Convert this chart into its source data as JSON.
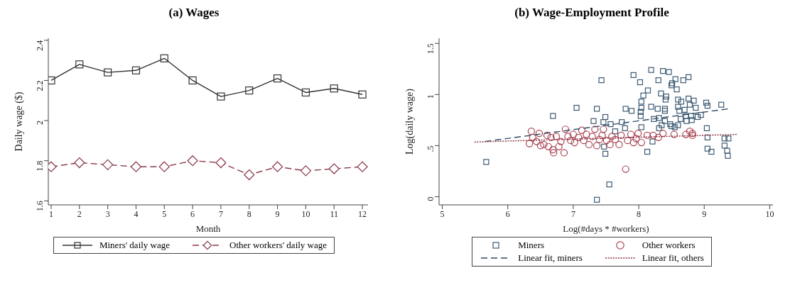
{
  "chart_data": [
    {
      "type": "line",
      "title": "(a) Wages",
      "xlabel": "Month",
      "ylabel": "Daily wage ($)",
      "x": [
        1,
        2,
        3,
        4,
        5,
        6,
        7,
        8,
        9,
        10,
        11,
        12
      ],
      "xlim": [
        0.9,
        12.2
      ],
      "xticks": [
        1,
        2,
        3,
        4,
        5,
        6,
        7,
        8,
        9,
        10,
        11,
        12
      ],
      "ylim": [
        1.58,
        2.41
      ],
      "yticks": [
        1.6,
        1.8,
        2,
        2.2,
        2.4
      ],
      "grid": false,
      "legend": "bottom",
      "series": [
        {
          "name": "Miners' daily wage",
          "color": "#333333",
          "marker": "square",
          "line_style": "solid",
          "values": [
            2.2,
            2.28,
            2.24,
            2.25,
            2.31,
            2.2,
            2.12,
            2.15,
            2.21,
            2.14,
            2.16,
            2.13
          ]
        },
        {
          "name": "Other workers' daily wage",
          "color": "#8b3a4a",
          "marker": "diamond",
          "line_style": "dashed",
          "values": [
            1.77,
            1.79,
            1.78,
            1.77,
            1.77,
            1.8,
            1.79,
            1.73,
            1.77,
            1.75,
            1.76,
            1.77
          ]
        }
      ]
    },
    {
      "type": "scatter",
      "title": "(b) Wage-Employment Profile",
      "xlabel": "Log(#days * #workers)",
      "ylabel": "Log(daily wage)",
      "xlim": [
        4.95,
        10.05
      ],
      "xticks": [
        5,
        6,
        7,
        8,
        9,
        10
      ],
      "ylim": [
        -0.08,
        1.55
      ],
      "yticks": [
        0,
        {
          "value": 0.5,
          "label": ".5"
        },
        1,
        1.5
      ],
      "grid": false,
      "legend": "bottom",
      "series": [
        {
          "name": "Miners",
          "color": "#3d5a73",
          "marker": "square",
          "x": [
            5.67,
            6.69,
            7.05,
            7.36,
            7.43,
            7.31,
            7.49,
            7.46,
            7.57,
            7.47,
            7.49,
            7.55,
            7.36,
            7.64,
            7.74,
            7.79,
            7.8,
            7.89,
            7.92,
            8.02,
            8.04,
            8.04,
            8.03,
            8.03,
            8.04,
            8.07,
            8.14,
            8.19,
            8.19,
            8.23,
            8.21,
            8.13,
            8.3,
            8.29,
            8.34,
            8.37,
            8.46,
            8.4,
            8.4,
            8.41,
            8.42,
            8.31,
            8.4,
            8.35,
            8.31,
            8.48,
            8.5,
            8.55,
            8.5,
            8.51,
            8.56,
            8.58,
            8.6,
            8.65,
            8.6,
            8.62,
            8.64,
            8.6,
            8.68,
            8.76,
            8.76,
            8.84,
            8.78,
            8.7,
            8.87,
            8.72,
            8.8,
            8.73,
            8.81,
            8.9,
            8.95,
            9.03,
            9.05,
            9.26,
            9.04,
            9.05,
            9.05,
            9.11,
            9.31,
            9.37,
            9.31,
            9.35,
            9.36
          ],
          "values": [
            0.34,
            0.79,
            0.87,
            0.86,
            1.14,
            0.74,
            0.78,
            0.73,
            0.71,
            0.49,
            0.42,
            0.12,
            -0.03,
            0.64,
            0.73,
            0.67,
            0.86,
            0.84,
            1.19,
            1.12,
            0.93,
            0.87,
            0.83,
            0.79,
            0.68,
            0.99,
            1.04,
            1.24,
            0.88,
            0.76,
            0.54,
            0.44,
            1.14,
            0.86,
            1.01,
            1.23,
            1.22,
            0.86,
            0.84,
            0.95,
            0.98,
            0.77,
            0.74,
            0.7,
            0.67,
            0.71,
            0.69,
            0.68,
            1.09,
            1.11,
            1.15,
            1.05,
            0.95,
            0.93,
            0.88,
            0.84,
            0.76,
            0.7,
            1.14,
            1.17,
            0.96,
            0.94,
            0.9,
            0.85,
            0.87,
            0.79,
            0.79,
            0.74,
            0.75,
            0.78,
            0.8,
            0.92,
            0.89,
            0.9,
            0.67,
            0.58,
            0.47,
            0.44,
            0.57,
            0.57,
            0.5,
            0.45,
            0.4
          ]
        },
        {
          "name": "Other workers",
          "color": "#a8404f",
          "marker": "circle",
          "x": [
            6.36,
            6.33,
            6.38,
            6.44,
            6.48,
            6.5,
            6.55,
            6.6,
            6.62,
            6.66,
            6.69,
            6.7,
            6.74,
            6.78,
            6.81,
            6.86,
            6.88,
            6.92,
            6.96,
            7.0,
            7.02,
            7.08,
            7.13,
            7.16,
            7.2,
            7.24,
            7.29,
            7.33,
            7.36,
            7.4,
            7.44,
            7.46,
            7.51,
            7.56,
            7.59,
            7.64,
            7.7,
            7.73,
            7.8,
            7.83,
            7.88,
            7.92,
            7.96,
            7.99,
            8.04,
            8.13,
            8.22,
            8.3,
            8.37,
            8.54,
            8.72,
            8.78,
            8.82,
            8.82
          ],
          "values": [
            0.64,
            0.52,
            0.58,
            0.54,
            0.62,
            0.5,
            0.51,
            0.6,
            0.49,
            0.58,
            0.46,
            0.43,
            0.59,
            0.49,
            0.54,
            0.43,
            0.66,
            0.59,
            0.55,
            0.61,
            0.53,
            0.58,
            0.65,
            0.55,
            0.61,
            0.51,
            0.59,
            0.66,
            0.5,
            0.56,
            0.6,
            0.66,
            0.55,
            0.51,
            0.59,
            0.56,
            0.51,
            0.6,
            0.27,
            0.55,
            0.61,
            0.53,
            0.57,
            0.62,
            0.53,
            0.6,
            0.6,
            0.58,
            0.62,
            0.61,
            0.61,
            0.64,
            0.62,
            0.6
          ]
        },
        {
          "name": "Linear fit, miners",
          "type": "line",
          "color": "#2e4a66",
          "marker": "none",
          "line_style": "dashed",
          "x": [
            5.65,
            9.37
          ],
          "values": [
            0.54,
            0.86
          ]
        },
        {
          "name": "Linear fit, others",
          "type": "line",
          "color": "#8b2e3e",
          "marker": "none",
          "line_style": "dotted",
          "x": [
            5.49,
            9.51
          ],
          "values": [
            0.535,
            0.61
          ]
        }
      ]
    }
  ]
}
